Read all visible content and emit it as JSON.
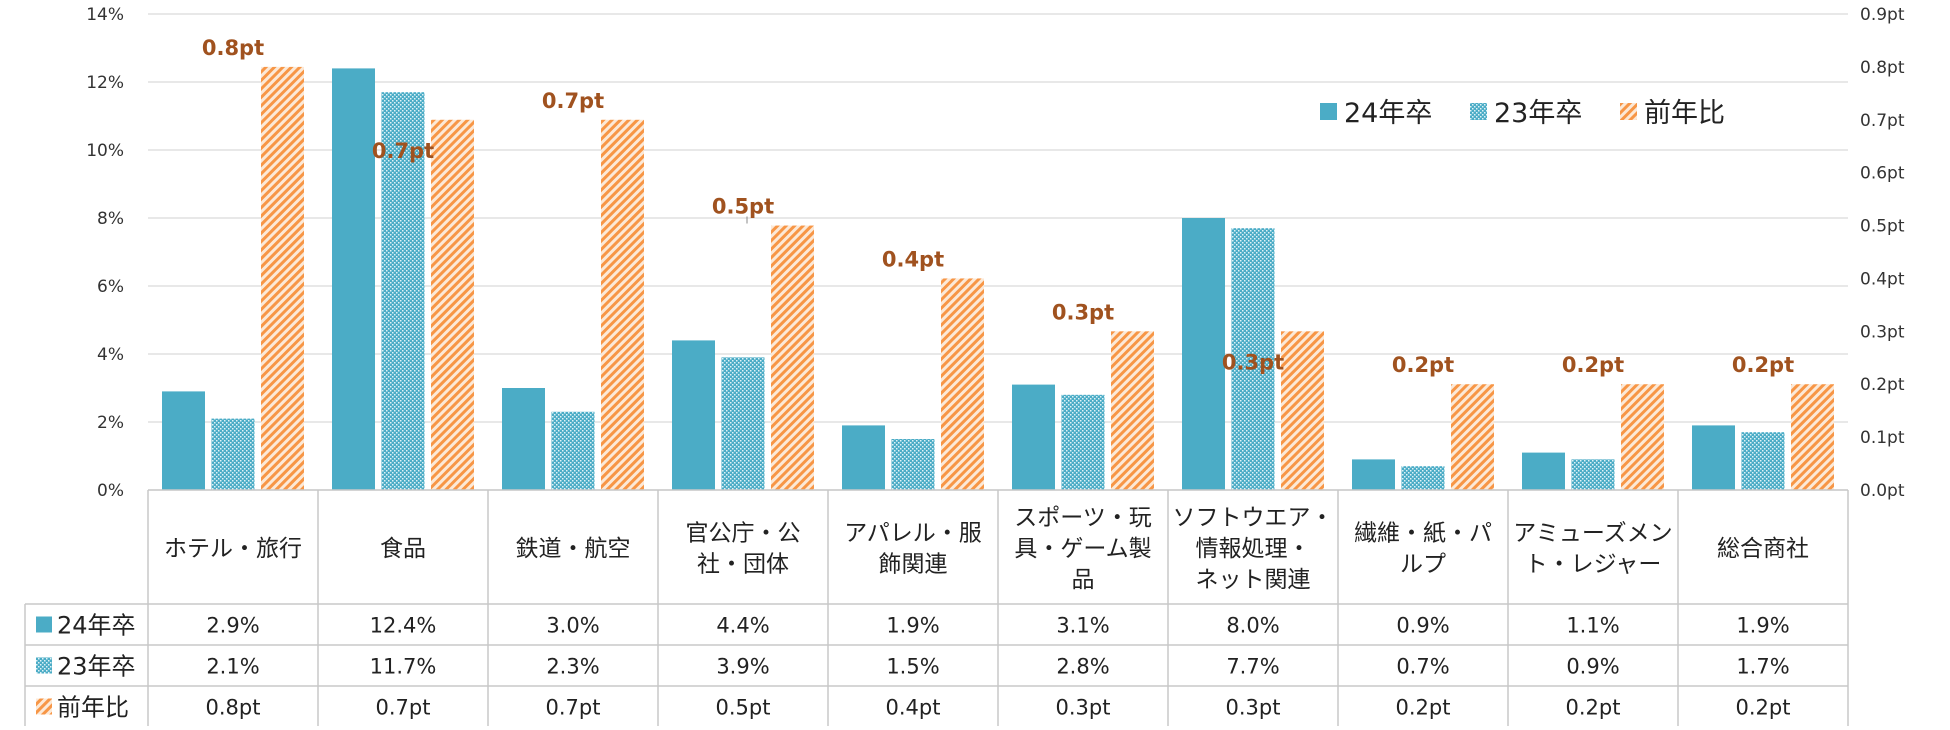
{
  "chart_data": {
    "type": "bar",
    "title": "",
    "categories": [
      [
        "ホテル・旅行"
      ],
      [
        "食品"
      ],
      [
        "鉄道・航空"
      ],
      [
        "官公庁・公",
        "社・団体"
      ],
      [
        "アパレル・服",
        "飾関連"
      ],
      [
        "スポーツ・玩",
        "具・ゲーム製",
        "品"
      ],
      [
        "ソフトウエア・",
        "情報処理・",
        "ネット関連"
      ],
      [
        "繊維・紙・パ",
        "ルプ"
      ],
      [
        "アミューズメン",
        "ト・レジャー"
      ],
      [
        "総合商社"
      ]
    ],
    "series": [
      {
        "name": "24年卒",
        "axis": "left",
        "unit": "%",
        "color": "#4bacc6",
        "pattern": "solid",
        "values": [
          2.9,
          12.4,
          3.0,
          4.4,
          1.9,
          3.1,
          8.0,
          0.9,
          1.1,
          1.9
        ],
        "table_labels": [
          "2.9%",
          "12.4%",
          "3.0%",
          "4.4%",
          "1.9%",
          "3.1%",
          "8.0%",
          "0.9%",
          "1.1%",
          "1.9%"
        ]
      },
      {
        "name": "23年卒",
        "axis": "left",
        "unit": "%",
        "color": "#4bacc6",
        "pattern": "dots",
        "values": [
          2.1,
          11.7,
          2.3,
          3.9,
          1.5,
          2.8,
          7.7,
          0.7,
          0.9,
          1.7
        ],
        "table_labels": [
          "2.1%",
          "11.7%",
          "2.3%",
          "3.9%",
          "1.5%",
          "2.8%",
          "7.7%",
          "0.7%",
          "0.9%",
          "1.7%"
        ]
      },
      {
        "name": "前年比",
        "axis": "right",
        "unit": "pt",
        "color": "#f79646",
        "pattern": "diagonal",
        "values": [
          0.8,
          0.7,
          0.7,
          0.5,
          0.4,
          0.3,
          0.3,
          0.2,
          0.2,
          0.2
        ],
        "table_labels": [
          "0.8pt",
          "0.7pt",
          "0.7pt",
          "0.5pt",
          "0.4pt",
          "0.3pt",
          "0.3pt",
          "0.2pt",
          "0.2pt",
          "0.2pt"
        ],
        "data_labels": [
          "0.8pt",
          "0.7pt",
          "0.7pt",
          "0.5pt",
          "0.4pt",
          "0.3pt",
          "0.3pt",
          "0.2pt",
          "0.2pt",
          "0.2pt"
        ]
      }
    ],
    "y_left": {
      "ylim": [
        0,
        14
      ],
      "ticks": [
        "0%",
        "2%",
        "4%",
        "6%",
        "8%",
        "10%",
        "12%",
        "14%"
      ]
    },
    "y_right": {
      "ylim": [
        0,
        0.9
      ],
      "ticks": [
        "0.0pt",
        "0.1pt",
        "0.2pt",
        "0.3pt",
        "0.4pt",
        "0.5pt",
        "0.6pt",
        "0.7pt",
        "0.8pt",
        "0.9pt"
      ]
    },
    "grid": true,
    "legend": {
      "placement": "top-right",
      "entries": [
        "24年卒",
        "23年卒",
        "前年比"
      ]
    },
    "data_table": true,
    "label_color": "#a0521f"
  }
}
